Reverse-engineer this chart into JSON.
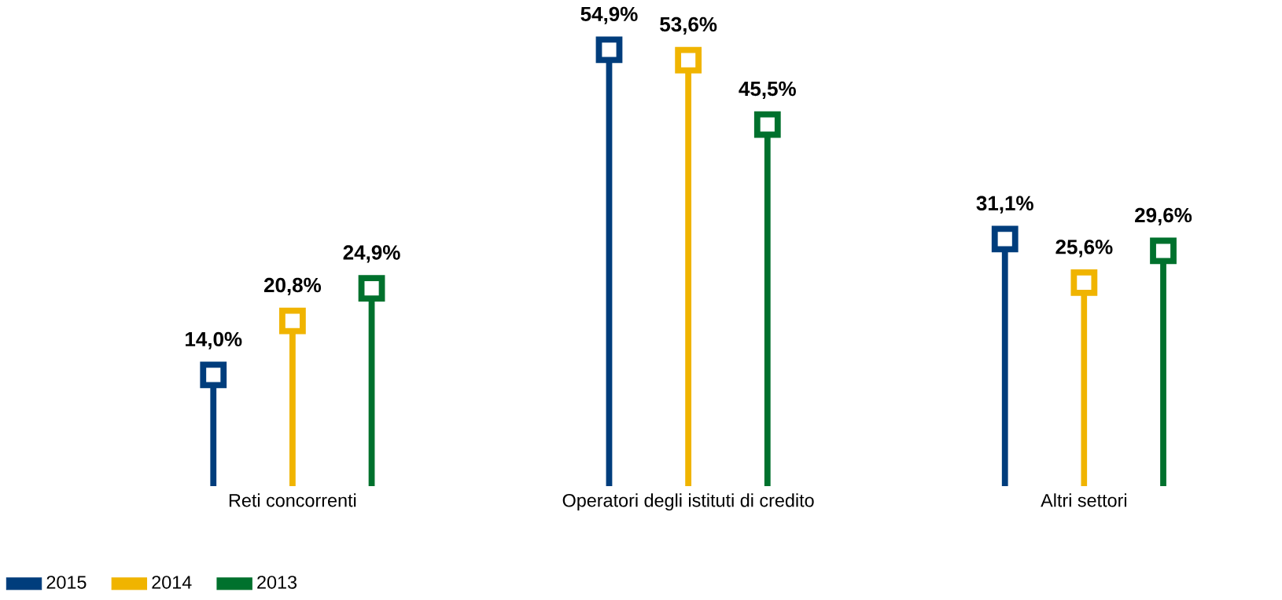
{
  "chart_data": {
    "type": "lollipop",
    "categories": [
      "Reti concorrenti",
      "Operatori degli istituti di credito",
      "Altri settori"
    ],
    "series": [
      {
        "name": "2015",
        "color": "#003d7c",
        "values": [
          14.0,
          54.9,
          31.1
        ],
        "value_labels": [
          "14,0%",
          "54,9%",
          "31,1%"
        ]
      },
      {
        "name": "2014",
        "color": "#f0b400",
        "values": [
          20.8,
          53.6,
          25.6
        ],
        "value_labels": [
          "20,8%",
          "53,6%",
          "25,6%"
        ]
      },
      {
        "name": "2013",
        "color": "#00712d",
        "values": [
          24.9,
          45.5,
          29.6
        ],
        "value_labels": [
          "24,9%",
          "45,5%",
          "29,6%"
        ]
      }
    ],
    "marker": "square",
    "legend": "bottom left"
  }
}
